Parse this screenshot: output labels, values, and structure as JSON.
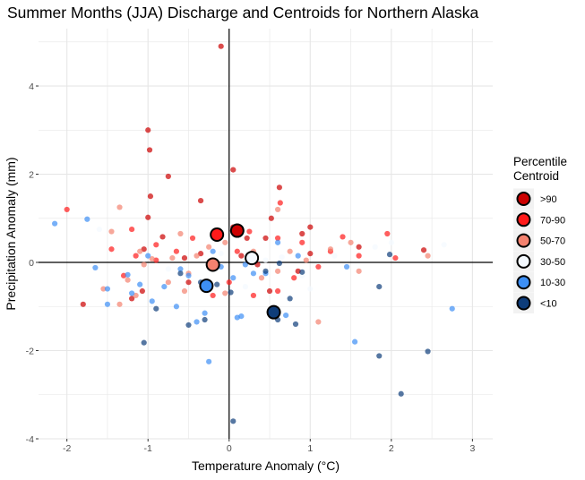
{
  "chart_data": {
    "type": "scatter",
    "title": "Summer Months (JJA) Discharge and Centroids for Northern Alaska",
    "xlabel": "Temperature Anomaly (°C)",
    "ylabel": "Precipitation Anomaly (mm)",
    "xlim": [
      -2.35,
      3.25
    ],
    "ylim": [
      -4.0,
      5.3
    ],
    "x_ticks": [
      -2,
      -1,
      0,
      1,
      2,
      3
    ],
    "x_tick_labels": [
      "-2",
      "-1",
      "0",
      "1",
      "2",
      "3"
    ],
    "y_ticks": [
      -4,
      -2,
      0,
      2,
      4
    ],
    "y_tick_labels": [
      "-4",
      "-2",
      "0",
      "2",
      "4"
    ],
    "grid": true,
    "reference_lines": {
      "x": 0,
      "y": 0
    },
    "legend": {
      "title": [
        "Percentile",
        "Centroid"
      ],
      "placement": "right",
      "items": [
        {
          "label": ">90",
          "color": "#cc0000"
        },
        {
          "label": "70-90",
          "color": "#ff1a1a"
        },
        {
          "label": "50-70",
          "color": "#f4826f"
        },
        {
          "label": "30-50",
          "color": "#f4f9ff"
        },
        {
          "label": "10-30",
          "color": "#3d8ff5"
        },
        {
          "label": "<10",
          "color": "#0e3d7a"
        }
      ]
    },
    "series": [
      {
        "name": ">90",
        "color": "#cc0000",
        "points": [
          [
            -0.1,
            4.9
          ],
          [
            -1.0,
            3.0
          ],
          [
            -0.98,
            2.55
          ],
          [
            -0.75,
            1.95
          ],
          [
            0.05,
            2.1
          ],
          [
            -0.97,
            1.5
          ],
          [
            -0.35,
            1.4
          ],
          [
            -1.0,
            1.02
          ],
          [
            -0.82,
            0.58
          ],
          [
            0.62,
            1.7
          ],
          [
            0.52,
            1.0
          ],
          [
            1.0,
            0.8
          ],
          [
            0.9,
            0.65
          ],
          [
            0.05,
            0.8
          ],
          [
            0.22,
            0.55
          ],
          [
            0.45,
            0.55
          ],
          [
            -1.05,
            0.3
          ],
          [
            -0.55,
            0.1
          ],
          [
            -0.35,
            0.2
          ],
          [
            0.15,
            0.15
          ],
          [
            0.85,
            -0.2
          ],
          [
            1.6,
            0.35
          ],
          [
            1.0,
            0.2
          ],
          [
            2.4,
            0.28
          ],
          [
            0.35,
            -0.05
          ],
          [
            0.5,
            -0.65
          ],
          [
            -1.07,
            -0.65
          ],
          [
            -1.8,
            -0.95
          ],
          [
            -1.2,
            -0.82
          ],
          [
            -0.5,
            -0.45
          ]
        ]
      },
      {
        "name": "70-90",
        "color": "#ff1a1a",
        "points": [
          [
            0.63,
            1.35
          ],
          [
            1.4,
            0.58
          ],
          [
            1.95,
            0.65
          ],
          [
            -2.0,
            1.2
          ],
          [
            -1.45,
            0.3
          ],
          [
            -1.2,
            0.75
          ],
          [
            -0.9,
            0.4
          ],
          [
            -0.65,
            0.25
          ],
          [
            -0.45,
            0.55
          ],
          [
            0.1,
            0.25
          ],
          [
            0.25,
            0.7
          ],
          [
            0.6,
            0.55
          ],
          [
            0.9,
            0.45
          ],
          [
            1.25,
            0.25
          ],
          [
            1.6,
            0.15
          ],
          [
            2.05,
            0.1
          ],
          [
            1.1,
            -0.1
          ],
          [
            0.8,
            -0.35
          ],
          [
            0.6,
            -0.65
          ],
          [
            0.3,
            -0.75
          ],
          [
            0.0,
            -0.45
          ],
          [
            -0.2,
            -0.75
          ],
          [
            -0.25,
            -0.5
          ],
          [
            -0.9,
            0.05
          ],
          [
            -1.3,
            -0.3
          ],
          [
            -1.15,
            0.15
          ]
        ]
      },
      {
        "name": "50-70",
        "color": "#f4826f",
        "points": [
          [
            -1.35,
            1.25
          ],
          [
            -1.45,
            0.7
          ],
          [
            -1.55,
            -0.6
          ],
          [
            -1.25,
            -0.4
          ],
          [
            -1.1,
            0.25
          ],
          [
            -0.95,
            0.08
          ],
          [
            -0.7,
            0.1
          ],
          [
            -0.6,
            0.65
          ],
          [
            -0.4,
            0.15
          ],
          [
            -0.25,
            0.35
          ],
          [
            -0.05,
            0.45
          ],
          [
            0.3,
            0.25
          ],
          [
            0.6,
            1.2
          ],
          [
            0.75,
            0.25
          ],
          [
            0.95,
            0.05
          ],
          [
            1.25,
            0.3
          ],
          [
            1.5,
            0.45
          ],
          [
            2.45,
            0.15
          ],
          [
            1.6,
            -0.2
          ],
          [
            1.1,
            -1.35
          ],
          [
            0.6,
            -0.2
          ],
          [
            0.4,
            -0.35
          ],
          [
            0.25,
            0.05
          ],
          [
            -0.05,
            -0.7
          ],
          [
            -0.5,
            -0.25
          ],
          [
            -0.55,
            -0.65
          ],
          [
            -0.75,
            -0.45
          ],
          [
            -1.05,
            -0.05
          ],
          [
            -1.15,
            -0.75
          ],
          [
            -1.35,
            -0.95
          ]
        ]
      },
      {
        "name": "30-50",
        "color": "#f4f9ff",
        "points": [
          [
            2.0,
            0.45
          ],
          [
            2.65,
            0.4
          ],
          [
            1.8,
            0.35
          ],
          [
            1.3,
            0.15
          ],
          [
            0.65,
            0.12
          ],
          [
            -0.1,
            0.2
          ],
          [
            0.9,
            -0.3
          ],
          [
            -1.6,
            0.75
          ],
          [
            -0.75,
            -0.15
          ],
          [
            0.2,
            -0.55
          ],
          [
            0.45,
            0.05
          ],
          [
            1.0,
            -0.6
          ]
        ]
      },
      {
        "name": "10-30",
        "color": "#3d8ff5",
        "points": [
          [
            -2.15,
            0.88
          ],
          [
            -1.75,
            0.98
          ],
          [
            -1.65,
            -0.12
          ],
          [
            -1.5,
            -0.6
          ],
          [
            -1.5,
            -0.95
          ],
          [
            -1.25,
            -0.28
          ],
          [
            -1.2,
            -0.7
          ],
          [
            -1.1,
            -0.5
          ],
          [
            -1.0,
            0.15
          ],
          [
            -0.95,
            -0.88
          ],
          [
            -0.8,
            -0.55
          ],
          [
            -0.65,
            -1.0
          ],
          [
            -0.6,
            -0.15
          ],
          [
            -0.5,
            -0.3
          ],
          [
            -0.4,
            -1.35
          ],
          [
            -0.3,
            -1.15
          ],
          [
            -0.25,
            -2.25
          ],
          [
            -0.2,
            0.25
          ],
          [
            0.05,
            -0.35
          ],
          [
            0.1,
            -1.25
          ],
          [
            0.15,
            -1.22
          ],
          [
            0.2,
            -0.05
          ],
          [
            0.3,
            -0.25
          ],
          [
            0.45,
            -0.25
          ],
          [
            0.6,
            0.45
          ],
          [
            0.85,
            0.15
          ],
          [
            1.55,
            -1.8
          ],
          [
            2.75,
            -1.05
          ],
          [
            1.45,
            -0.1
          ],
          [
            0.7,
            -1.2
          ],
          [
            -0.1,
            -0.1
          ]
        ]
      },
      {
        "name": "<10",
        "color": "#0e3d7a",
        "points": [
          [
            -1.05,
            -1.82
          ],
          [
            -0.5,
            -1.42
          ],
          [
            -0.3,
            -1.3
          ],
          [
            0.05,
            -3.6
          ],
          [
            0.82,
            -1.4
          ],
          [
            0.75,
            -0.82
          ],
          [
            0.6,
            -1.3
          ],
          [
            1.85,
            -0.55
          ],
          [
            1.85,
            -2.12
          ],
          [
            2.45,
            -2.02
          ],
          [
            2.12,
            -2.98
          ],
          [
            1.98,
            0.18
          ],
          [
            0.9,
            -0.22
          ],
          [
            0.62,
            -0.02
          ],
          [
            0.45,
            -0.2
          ],
          [
            0.02,
            -0.68
          ],
          [
            -0.15,
            -0.5
          ],
          [
            -0.35,
            -0.45
          ],
          [
            -0.6,
            -0.25
          ],
          [
            -0.9,
            -1.05
          ]
        ]
      }
    ],
    "centroids": [
      {
        "name": ">90",
        "color": "#cc0000",
        "x": 0.1,
        "y": 0.72
      },
      {
        "name": "70-90",
        "color": "#ff1a1a",
        "x": -0.15,
        "y": 0.63
      },
      {
        "name": "50-70",
        "color": "#f4826f",
        "x": -0.2,
        "y": -0.05
      },
      {
        "name": "30-50",
        "color": "#f4f9ff",
        "x": 0.28,
        "y": 0.1
      },
      {
        "name": "10-30",
        "color": "#3d8ff5",
        "x": -0.28,
        "y": -0.53
      },
      {
        "name": "<10",
        "color": "#0e3d7a",
        "x": 0.55,
        "y": -1.13
      }
    ]
  }
}
